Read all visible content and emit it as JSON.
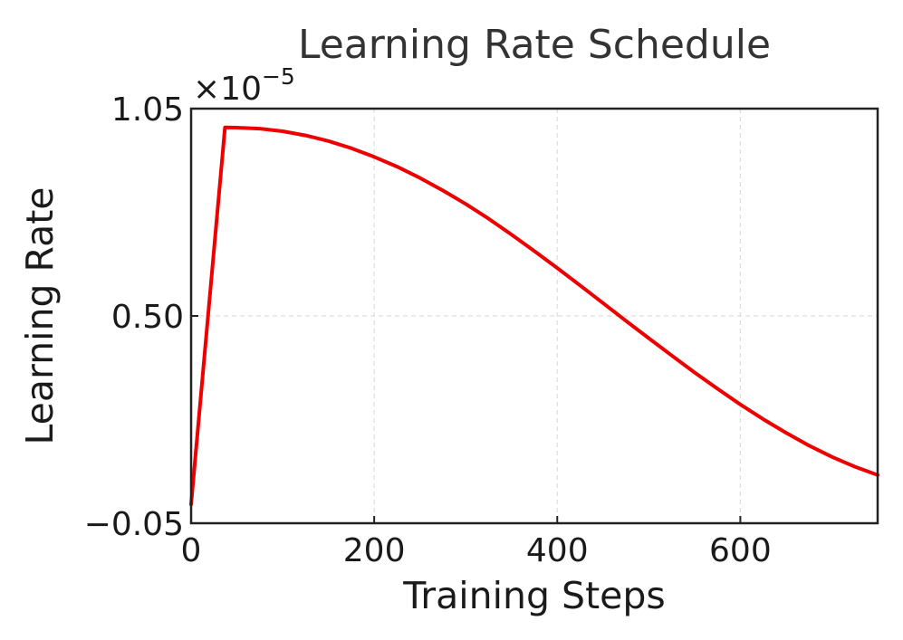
{
  "chart_data": {
    "type": "line",
    "title": "Learning Rate Schedule",
    "xlabel": "Training Steps",
    "ylabel": "Learning Rate",
    "y_offset_base": "×10",
    "y_offset_exponent": "−5",
    "xlim": [
      0,
      750
    ],
    "ylim": [
      -0.05,
      1.05
    ],
    "x_ticks": [
      0,
      200,
      400,
      600
    ],
    "x_tick_labels": [
      "0",
      "200",
      "400",
      "600"
    ],
    "y_ticks": [
      -0.05,
      0.5,
      1.05
    ],
    "y_tick_labels": [
      "−0.05",
      "0.50",
      "1.05"
    ],
    "grid": true,
    "series": [
      {
        "color": "#ee0000",
        "x": [
          0,
          37,
          50,
          75,
          100,
          125,
          150,
          175,
          200,
          225,
          250,
          275,
          300,
          325,
          350,
          375,
          400,
          425,
          450,
          475,
          500,
          525,
          550,
          575,
          600,
          625,
          650,
          675,
          700,
          725,
          750
        ],
        "y": [
          0.0,
          1.0,
          0.9995,
          0.997,
          0.99,
          0.979,
          0.964,
          0.945,
          0.922,
          0.896,
          0.866,
          0.833,
          0.797,
          0.758,
          0.716,
          0.672,
          0.627,
          0.581,
          0.534,
          0.487,
          0.441,
          0.395,
          0.35,
          0.307,
          0.265,
          0.226,
          0.19,
          0.156,
          0.126,
          0.1,
          0.078
        ]
      }
    ]
  }
}
